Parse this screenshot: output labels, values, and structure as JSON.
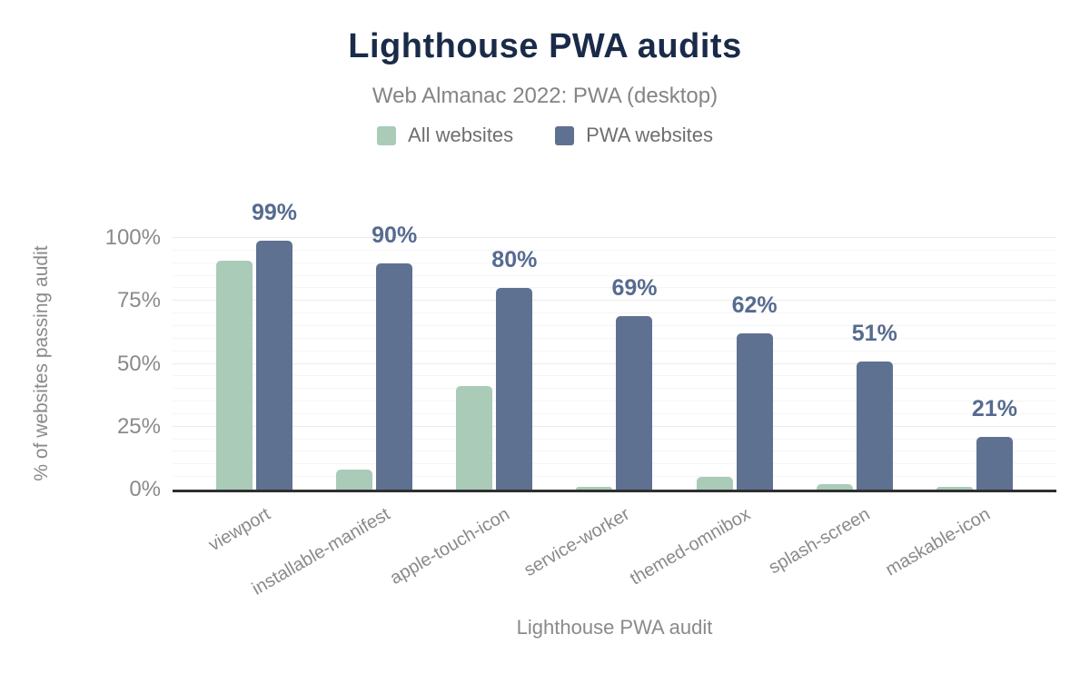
{
  "chart_data": {
    "type": "bar",
    "title": "Lighthouse PWA audits",
    "subtitle": "Web Almanac 2022: PWA (desktop)",
    "xlabel": "Lighthouse PWA audit",
    "ylabel": "% of websites passing audit",
    "categories": [
      "viewport",
      "installable-manifest",
      "apple-touch-icon",
      "service-worker",
      "themed-omnibox",
      "splash-screen",
      "maskable-icon"
    ],
    "series": [
      {
        "name": "All websites",
        "color": "#a9cbb8",
        "values": [
          91,
          8,
          41,
          1,
          5,
          2,
          1
        ],
        "show_labels": false
      },
      {
        "name": "PWA websites",
        "color": "#5f7191",
        "values": [
          99,
          90,
          80,
          69,
          62,
          51,
          21
        ],
        "show_labels": true,
        "data_labels": [
          "99%",
          "90%",
          "80%",
          "69%",
          "62%",
          "51%",
          "21%"
        ]
      }
    ],
    "ylim": [
      0,
      100
    ],
    "ytick_values": [
      0,
      25,
      50,
      75,
      100
    ],
    "ytick_labels": [
      "0%",
      "25%",
      "50%",
      "75%",
      "100%"
    ],
    "grid": "horizontal minor lines every 5%, major every 25%",
    "legend_position": "top center"
  },
  "colors": {
    "title": "#1a2b49",
    "subtitle": "#848484",
    "legend_text": "#6e6e6e",
    "axis_text": "#8a8a8a",
    "value_label": "#566b90",
    "axis_line": "#2f2f2f",
    "background": "#ffffff",
    "series_all_websites": "#a9cbb8",
    "series_pwa_websites": "#5f7191"
  }
}
